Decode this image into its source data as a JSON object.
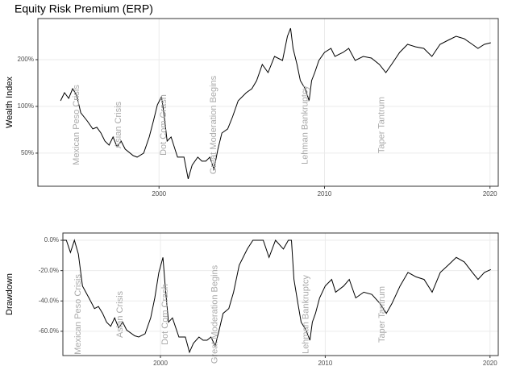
{
  "chart_data": [
    {
      "type": "line",
      "title": "Equity Risk Premium (ERP)",
      "y_label": "Wealth Index",
      "log_scale": true,
      "grid": true,
      "color": "#000000",
      "xlim": [
        1992.68,
        2020.5
      ],
      "xticks": [
        2000,
        2010,
        2020
      ],
      "ylim": [
        0.306,
        3.68
      ],
      "yticks": [
        {
          "value": 0.5,
          "label": "50%"
        },
        {
          "value": 1,
          "label": "100%"
        },
        {
          "value": 2,
          "label": "200%"
        }
      ],
      "x": [
        1994.05,
        1994.29,
        1994.54,
        1994.78,
        1995.02,
        1995.27,
        1995.66,
        1996.0,
        1996.24,
        1996.49,
        1996.73,
        1996.98,
        1997.22,
        1997.46,
        1997.71,
        1997.95,
        1998.44,
        1998.68,
        1999.07,
        1999.41,
        1999.66,
        1999.9,
        2000.15,
        2000.29,
        2000.49,
        2000.73,
        2001.12,
        2001.51,
        2001.76,
        2002.0,
        2002.34,
        2002.59,
        2002.83,
        2003.07,
        2003.32,
        2003.56,
        2003.8,
        2004.15,
        2004.44,
        2004.78,
        2005.27,
        2005.61,
        2005.9,
        2006.24,
        2006.59,
        2006.98,
        2007.46,
        2007.76,
        2007.95,
        2008.1,
        2008.34,
        2008.54,
        2008.83,
        2009.07,
        2009.22,
        2009.41,
        2009.66,
        2010.0,
        2010.39,
        2010.63,
        2011.12,
        2011.46,
        2011.85,
        2012.34,
        2012.83,
        2013.32,
        2013.71,
        2014.05,
        2014.54,
        2015.02,
        2015.51,
        2016.0,
        2016.49,
        2016.98,
        2017.46,
        2017.95,
        2018.44,
        2018.93,
        2019.27,
        2019.66,
        2020.05
      ],
      "values": [
        1.087,
        1.225,
        1.127,
        1.301,
        1.182,
        0.909,
        0.806,
        0.716,
        0.733,
        0.674,
        0.598,
        0.563,
        0.635,
        0.55,
        0.598,
        0.531,
        0.482,
        0.471,
        0.5,
        0.635,
        0.806,
        1.024,
        1.154,
        0.909,
        0.598,
        0.635,
        0.471,
        0.471,
        0.341,
        0.418,
        0.471,
        0.444,
        0.444,
        0.471,
        0.394,
        0.531,
        0.674,
        0.716,
        0.856,
        1.087,
        1.225,
        1.301,
        1.466,
        1.862,
        1.652,
        2.098,
        1.976,
        2.828,
        3.187,
        2.364,
        1.862,
        1.466,
        1.301,
        1.087,
        1.466,
        1.652,
        1.976,
        2.227,
        2.364,
        2.098,
        2.227,
        2.364,
        1.976,
        2.098,
        2.048,
        1.862,
        1.652,
        1.862,
        2.227,
        2.51,
        2.42,
        2.364,
        2.098,
        2.51,
        2.665,
        2.828,
        2.73,
        2.51,
        2.364,
        2.51,
        2.571
      ],
      "annotations": [
        {
          "label": "Mexican Peso Crisis",
          "x": 1995.02
        },
        {
          "label": "Asian Crisis",
          "x": 1997.56
        },
        {
          "label": "Dot Com Crash",
          "x": 2000.29
        },
        {
          "label": "Great Moderation Begins",
          "x": 2003.3
        },
        {
          "label": "Lehman Bankruptcy",
          "x": 2008.83
        },
        {
          "label": "Taper Tantrum",
          "x": 2013.46
        }
      ]
    },
    {
      "type": "line",
      "y_label": "Drawdown",
      "log_scale": false,
      "grid": true,
      "color": "#000000",
      "xlim": [
        1994.08,
        2020.5
      ],
      "xticks": [
        2000,
        2010,
        2020
      ],
      "ylim": [
        -76,
        4.8
      ],
      "yticks": [
        {
          "value": -60,
          "label": "-60.0%"
        },
        {
          "value": -40,
          "label": "-40.0%"
        },
        {
          "value": -20,
          "label": "-20.0%"
        },
        {
          "value": 0,
          "label": "0.0%"
        }
      ],
      "x": [
        1994.05,
        1994.29,
        1994.54,
        1994.78,
        1995.02,
        1995.27,
        1995.66,
        1996.0,
        1996.24,
        1996.49,
        1996.73,
        1996.98,
        1997.22,
        1997.46,
        1997.71,
        1997.95,
        1998.44,
        1998.68,
        1999.07,
        1999.41,
        1999.66,
        1999.9,
        2000.15,
        2000.29,
        2000.49,
        2000.73,
        2001.12,
        2001.51,
        2001.76,
        2002.0,
        2002.34,
        2002.59,
        2002.83,
        2003.07,
        2003.32,
        2003.56,
        2003.8,
        2004.15,
        2004.44,
        2004.78,
        2005.27,
        2005.61,
        2005.9,
        2006.24,
        2006.59,
        2006.98,
        2007.46,
        2007.76,
        2007.95,
        2008.1,
        2008.34,
        2008.54,
        2008.83,
        2009.07,
        2009.22,
        2009.41,
        2009.66,
        2010.0,
        2010.39,
        2010.63,
        2011.12,
        2011.46,
        2011.85,
        2012.34,
        2012.83,
        2013.32,
        2013.71,
        2014.05,
        2014.54,
        2015.02,
        2015.51,
        2016.0,
        2016.49,
        2016.98,
        2017.46,
        2017.95,
        2018.44,
        2018.93,
        2019.27,
        2019.66,
        2020.05
      ],
      "values": [
        0,
        0,
        -8.0,
        0,
        -9.1,
        -30.1,
        -38.0,
        -45.0,
        -43.7,
        -48.2,
        -54.0,
        -56.7,
        -51.2,
        -57.7,
        -54.0,
        -59.2,
        -63.0,
        -63.8,
        -61.6,
        -51.2,
        -38.0,
        -21.3,
        -11.3,
        -30.1,
        -54.0,
        -51.2,
        -63.8,
        -63.8,
        -73.8,
        -67.9,
        -63.8,
        -65.9,
        -65.9,
        -63.8,
        -69.7,
        -59.2,
        -48.2,
        -45.0,
        -34.2,
        -16.4,
        -5.8,
        0,
        0,
        0,
        -11.3,
        0,
        -5.8,
        0,
        0,
        -25.8,
        -41.6,
        -54.0,
        -59.2,
        -65.9,
        -54.0,
        -48.2,
        -38.0,
        -30.1,
        -25.8,
        -34.2,
        -30.1,
        -25.8,
        -38.0,
        -34.2,
        -35.7,
        -41.6,
        -48.2,
        -41.6,
        -30.1,
        -21.2,
        -24.1,
        -25.8,
        -34.2,
        -21.2,
        -16.4,
        -11.3,
        -14.3,
        -21.2,
        -25.8,
        -21.2,
        -19.3
      ],
      "annotations": [
        {
          "label": "Mexican Peso Crisis",
          "x": 1995.02
        },
        {
          "label": "Asian Crisis",
          "x": 1997.56
        },
        {
          "label": "Dot Com Crash",
          "x": 2000.29
        },
        {
          "label": "Great Moderation Begins",
          "x": 2003.3
        },
        {
          "label": "Lehman Bankruptcy",
          "x": 2008.83
        },
        {
          "label": "Taper Tantrum",
          "x": 2013.46
        }
      ]
    }
  ]
}
